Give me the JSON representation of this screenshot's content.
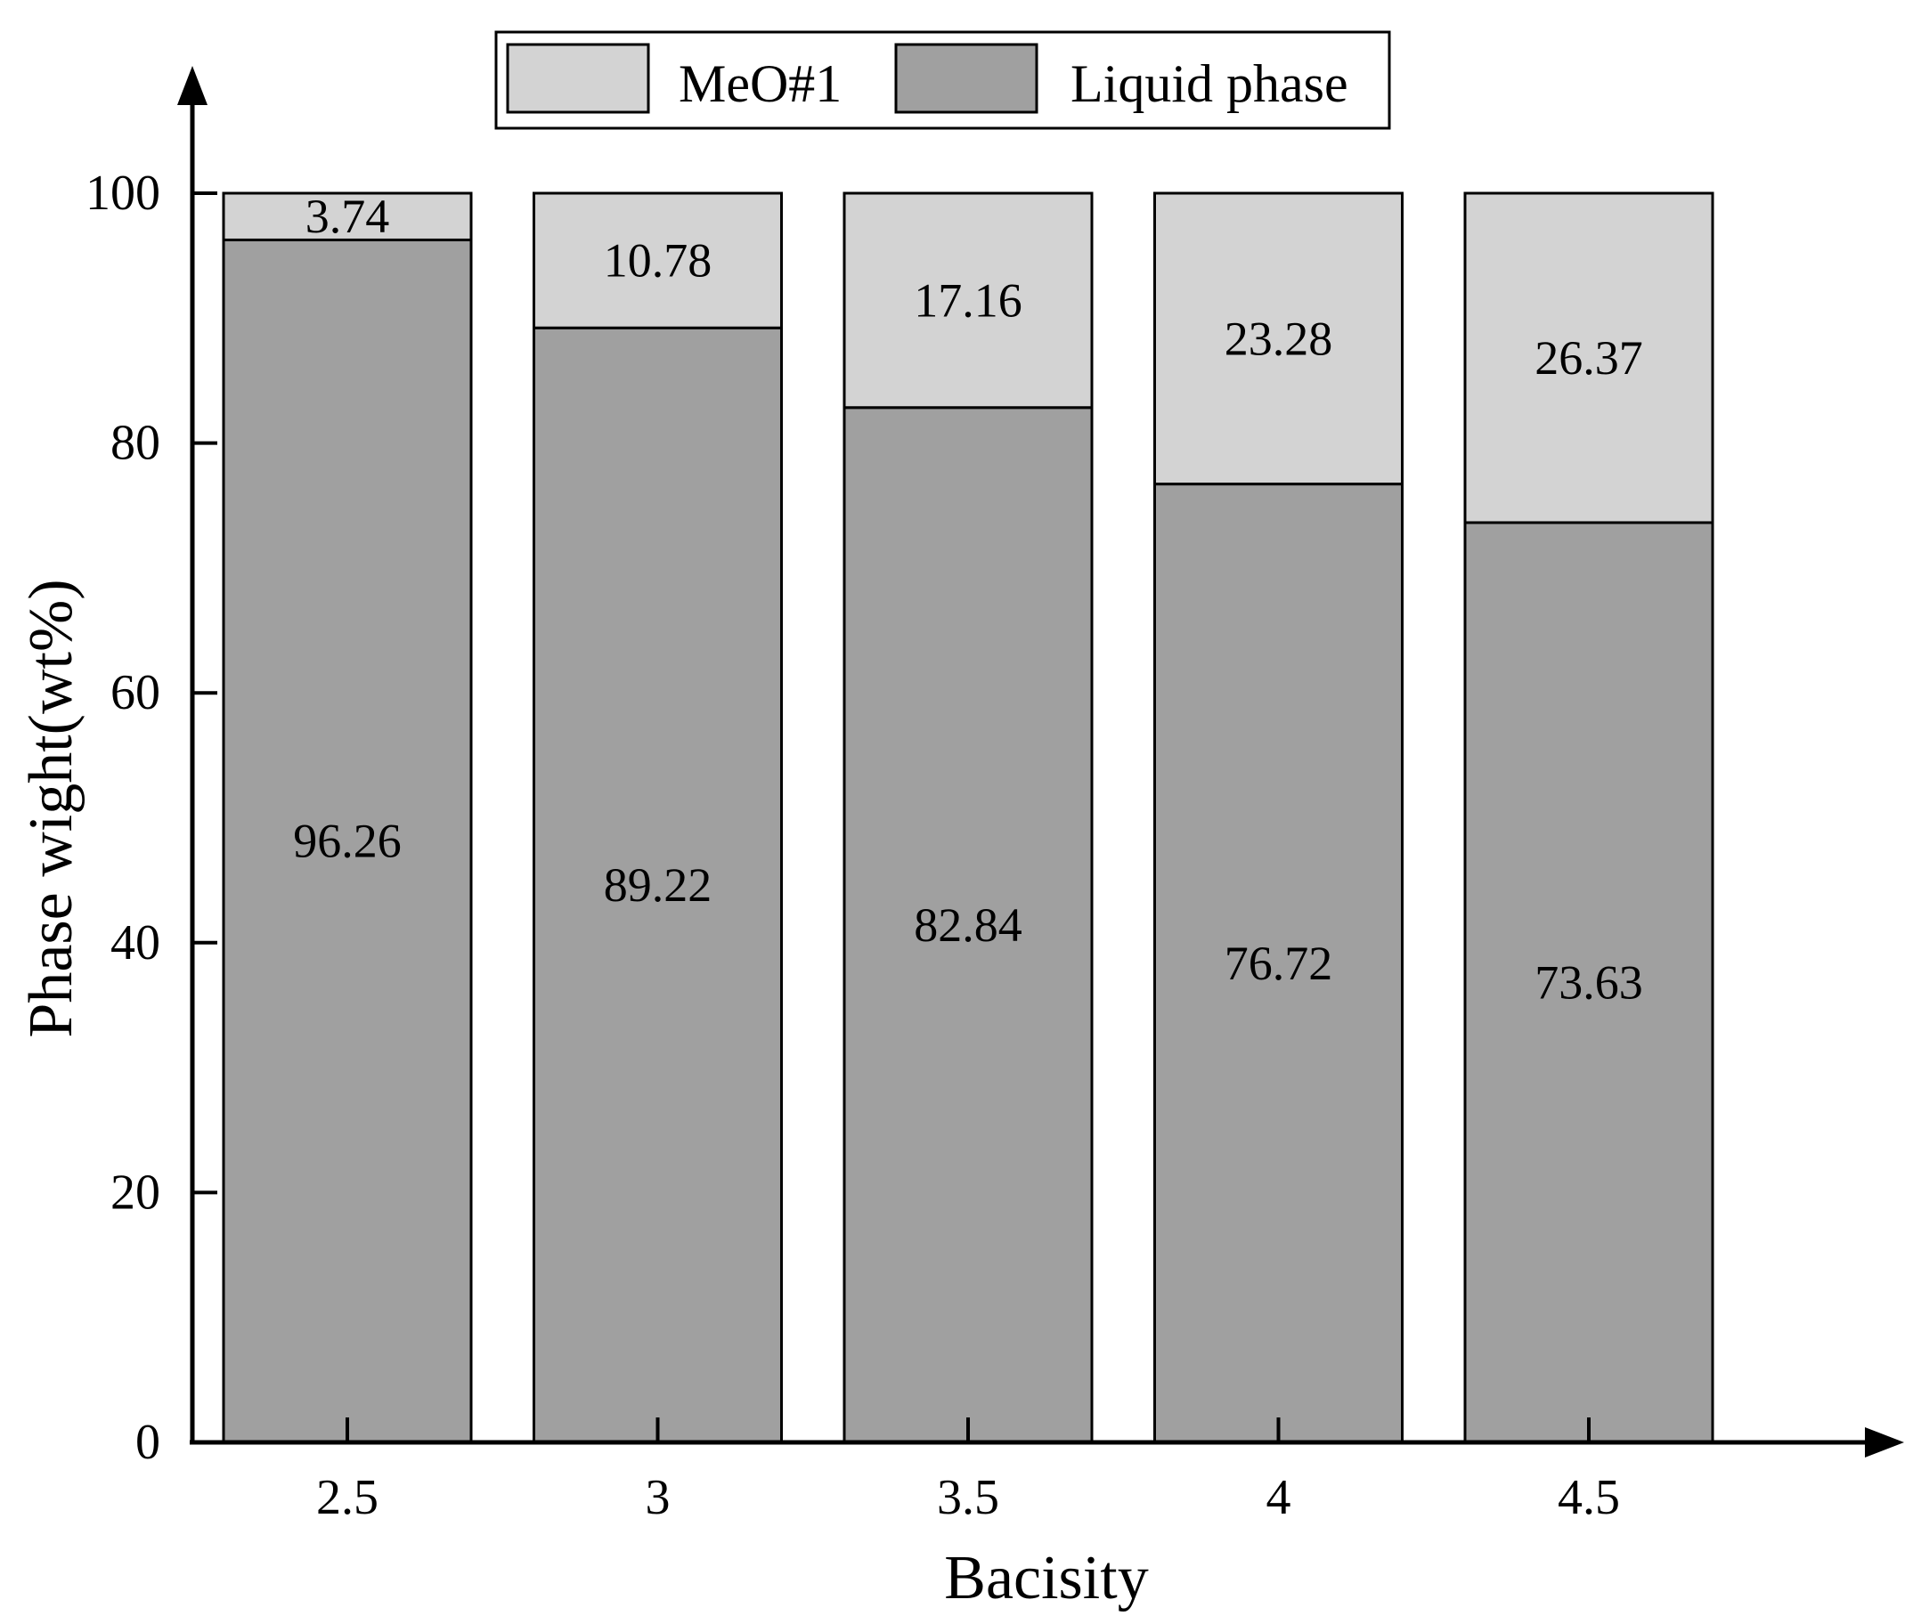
{
  "chart_data": {
    "type": "bar",
    "stacked": true,
    "xlabel": "Bacisity",
    "ylabel": "Phase wight(wt%)",
    "categories": [
      "2.5",
      "3",
      "3.5",
      "4",
      "4.5"
    ],
    "yticks": [
      "0",
      "20",
      "40",
      "60",
      "80",
      "100"
    ],
    "ylim": [
      0,
      100
    ],
    "grid": false,
    "legend_position": "top",
    "series": [
      {
        "name": "Liquid phase",
        "color": "#a0a0a0",
        "values": [
          96.26,
          89.22,
          82.84,
          76.72,
          73.63
        ]
      },
      {
        "name": "MeO#1",
        "color": "#d3d3d3",
        "values": [
          3.74,
          10.78,
          17.16,
          23.28,
          26.37
        ]
      }
    ],
    "legend_order": [
      "MeO#1",
      "Liquid phase"
    ]
  }
}
